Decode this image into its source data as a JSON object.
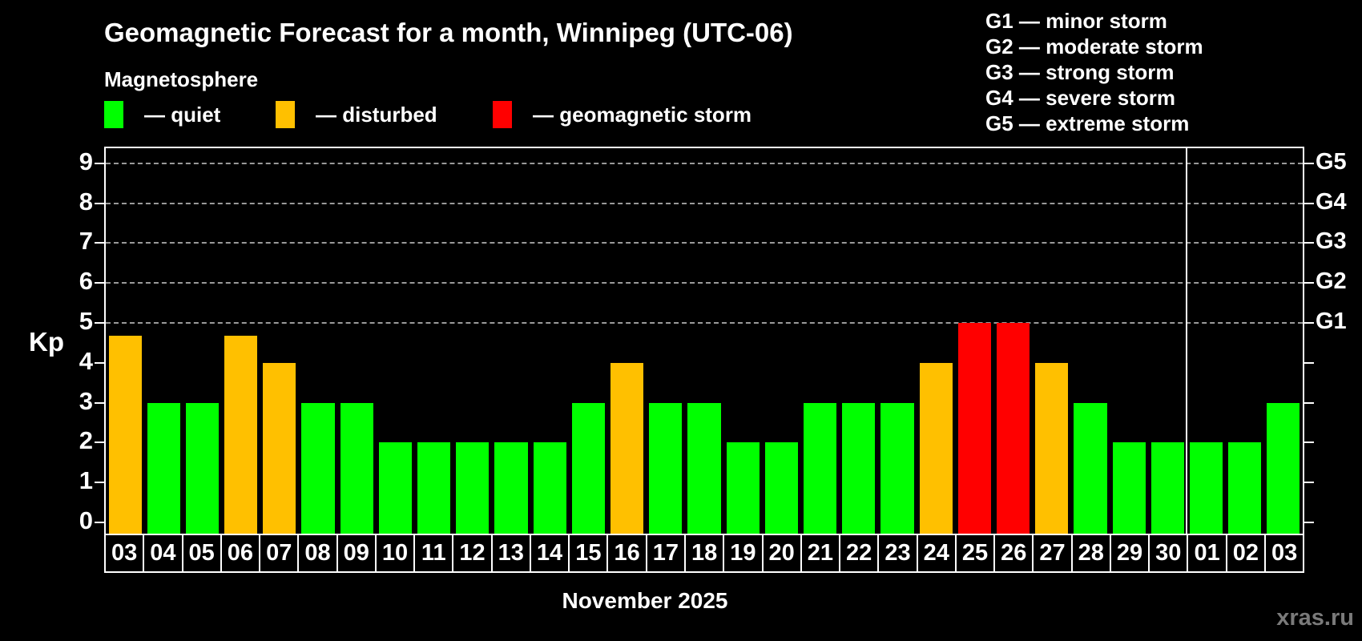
{
  "title": "Geomagnetic Forecast for a month, Winnipeg (UTC-06)",
  "subtitle": "Magnetosphere",
  "legend": [
    {
      "name": "quiet",
      "label": "— quiet",
      "state": "quiet"
    },
    {
      "name": "disturbed",
      "label": "— disturbed",
      "state": "disturbed"
    },
    {
      "name": "storm",
      "label": "— geomagnetic storm",
      "state": "storm"
    }
  ],
  "storm_legend": [
    "G1 — minor storm",
    "G2 — moderate storm",
    "G3 — strong storm",
    "G4 — severe storm",
    "G5 — extreme storm"
  ],
  "colors": {
    "quiet": "#00ff00",
    "disturbed": "#ffc000",
    "storm": "#ff0000",
    "grid": "#9a9a9a",
    "axis": "#ffffff",
    "background": "#000000",
    "watermark": "#7a7a7a"
  },
  "axis": {
    "y_label": "Kp",
    "y_ticks": [
      0,
      1,
      2,
      3,
      4,
      5,
      6,
      7,
      8,
      9
    ],
    "right_axis": [
      {
        "label": "G1",
        "value": 5
      },
      {
        "label": "G2",
        "value": 6
      },
      {
        "label": "G3",
        "value": 7
      },
      {
        "label": "G4",
        "value": 8
      },
      {
        "label": "G5",
        "value": 9
      }
    ]
  },
  "x_axis_title": "November 2025",
  "watermark": "xras.ru",
  "chart_data": {
    "type": "bar",
    "title": "Geomagnetic Forecast for a month, Winnipeg (UTC-06)",
    "xlabel": "November 2025",
    "ylabel": "Kp",
    "ylim": [
      0,
      9
    ],
    "grid": "dashed horizontal at Kp 5-9 only",
    "legend_position": "top-left and top-right",
    "categories": [
      "03",
      "04",
      "05",
      "06",
      "07",
      "08",
      "09",
      "10",
      "11",
      "12",
      "13",
      "14",
      "15",
      "16",
      "17",
      "18",
      "19",
      "20",
      "21",
      "22",
      "23",
      "24",
      "25",
      "26",
      "27",
      "28",
      "29",
      "30",
      "01",
      "02",
      "03"
    ],
    "values": [
      4.67,
      3,
      3,
      4.67,
      4,
      3,
      3,
      2,
      2,
      2,
      2,
      2,
      3,
      4,
      3,
      3,
      2,
      2,
      3,
      3,
      3,
      4,
      5,
      5,
      4,
      3,
      2,
      2,
      2,
      2,
      3
    ],
    "states": [
      "disturbed",
      "quiet",
      "quiet",
      "disturbed",
      "disturbed",
      "quiet",
      "quiet",
      "quiet",
      "quiet",
      "quiet",
      "quiet",
      "quiet",
      "quiet",
      "disturbed",
      "quiet",
      "quiet",
      "quiet",
      "quiet",
      "quiet",
      "quiet",
      "quiet",
      "disturbed",
      "storm",
      "storm",
      "disturbed",
      "quiet",
      "quiet",
      "quiet",
      "quiet",
      "quiet",
      "quiet"
    ],
    "gridlines": [
      5,
      6,
      7,
      8,
      9
    ],
    "month_boundary_after_index": 27
  }
}
